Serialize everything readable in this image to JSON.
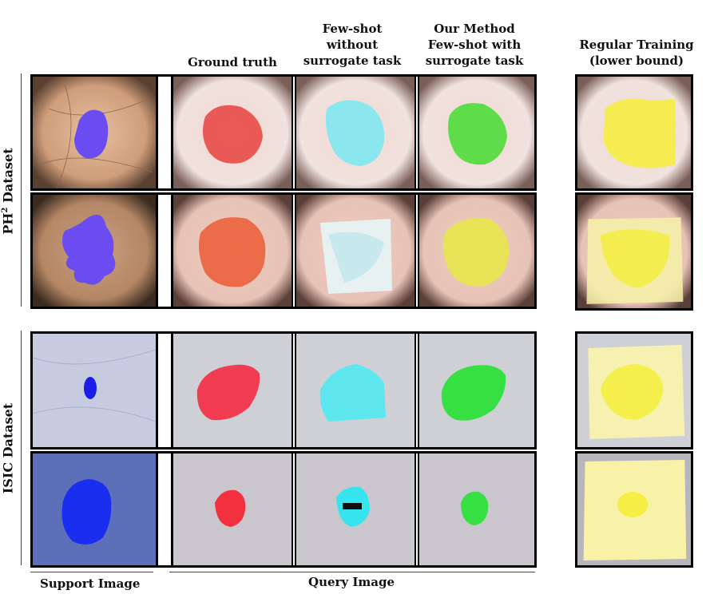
{
  "headers": {
    "ground_truth": "Ground truth",
    "few_shot_line1": "Few-shot",
    "few_shot_line2": "without",
    "few_shot_line3": "surrogate task",
    "ours_line1": "Our Method",
    "ours_line2": "Few-shot with",
    "ours_line3": "surrogate task",
    "regular_line1": "Regular Training",
    "regular_line2": "(lower bound)"
  },
  "row_labels": {
    "ph2_prefix": "PH",
    "ph2_sup": "2",
    "ph2_suffix": " Dataset",
    "isic": "ISIC Dataset"
  },
  "footers": {
    "support": "Support Image",
    "query": "Query Image"
  },
  "colors": {
    "support_mask": "#6a4cf0",
    "ground_truth_mask": "#e8433f",
    "few_shot_mask": "#7fe8f0",
    "ours_mask": "#4fdc3a",
    "regular_mask": "#f4ee3a"
  }
}
